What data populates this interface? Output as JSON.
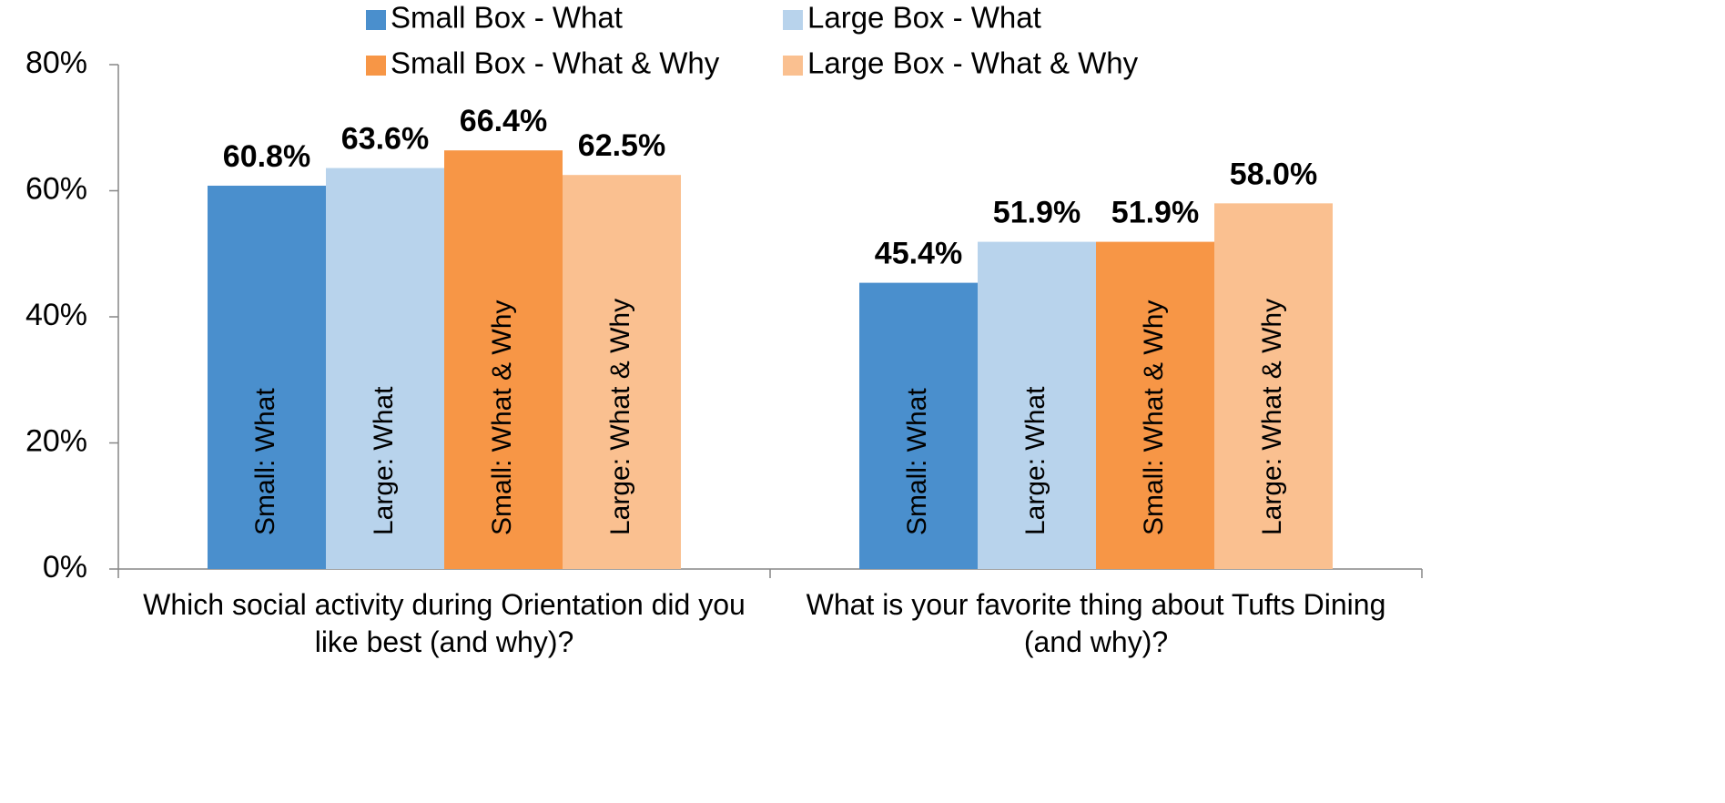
{
  "chart_data": {
    "type": "bar",
    "categories": [
      "Which social activity during Orientation did you like best (and why)?",
      "What is your favorite thing about Tufts Dining (and why)?"
    ],
    "series": [
      {
        "name": "Small Box - What",
        "color": "#4a8fcd",
        "values": [
          60.8,
          45.4
        ],
        "value_labels": [
          "60.8%",
          "45.4%"
        ],
        "bar_labels": [
          "Small: What",
          "Small: What"
        ]
      },
      {
        "name": "Large Box - What",
        "color": "#b8d3ec",
        "values": [
          63.6,
          51.9
        ],
        "value_labels": [
          "63.6%",
          "51.9%"
        ],
        "bar_labels": [
          "Large: What",
          "Large: What"
        ]
      },
      {
        "name": "Small Box - What & Why",
        "color": "#f79646",
        "values": [
          66.4,
          51.9
        ],
        "value_labels": [
          "66.4%",
          "51.9%"
        ],
        "bar_labels": [
          "Small: What & Why",
          "Small: What & Why"
        ]
      },
      {
        "name": "Large Box - What & Why",
        "color": "#fac090",
        "values": [
          62.5,
          58.0
        ],
        "value_labels": [
          "62.5%",
          "58.0%"
        ],
        "bar_labels": [
          "Large: What & Why",
          "Large: What & Why"
        ]
      }
    ],
    "ylim": [
      0,
      80
    ],
    "yticks": [
      {
        "value": 0,
        "label": "0%"
      },
      {
        "value": 20,
        "label": "20%"
      },
      {
        "value": 40,
        "label": "40%"
      },
      {
        "value": 60,
        "label": "60%"
      },
      {
        "value": 80,
        "label": "80%"
      }
    ],
    "grid": false,
    "legend": "top"
  }
}
